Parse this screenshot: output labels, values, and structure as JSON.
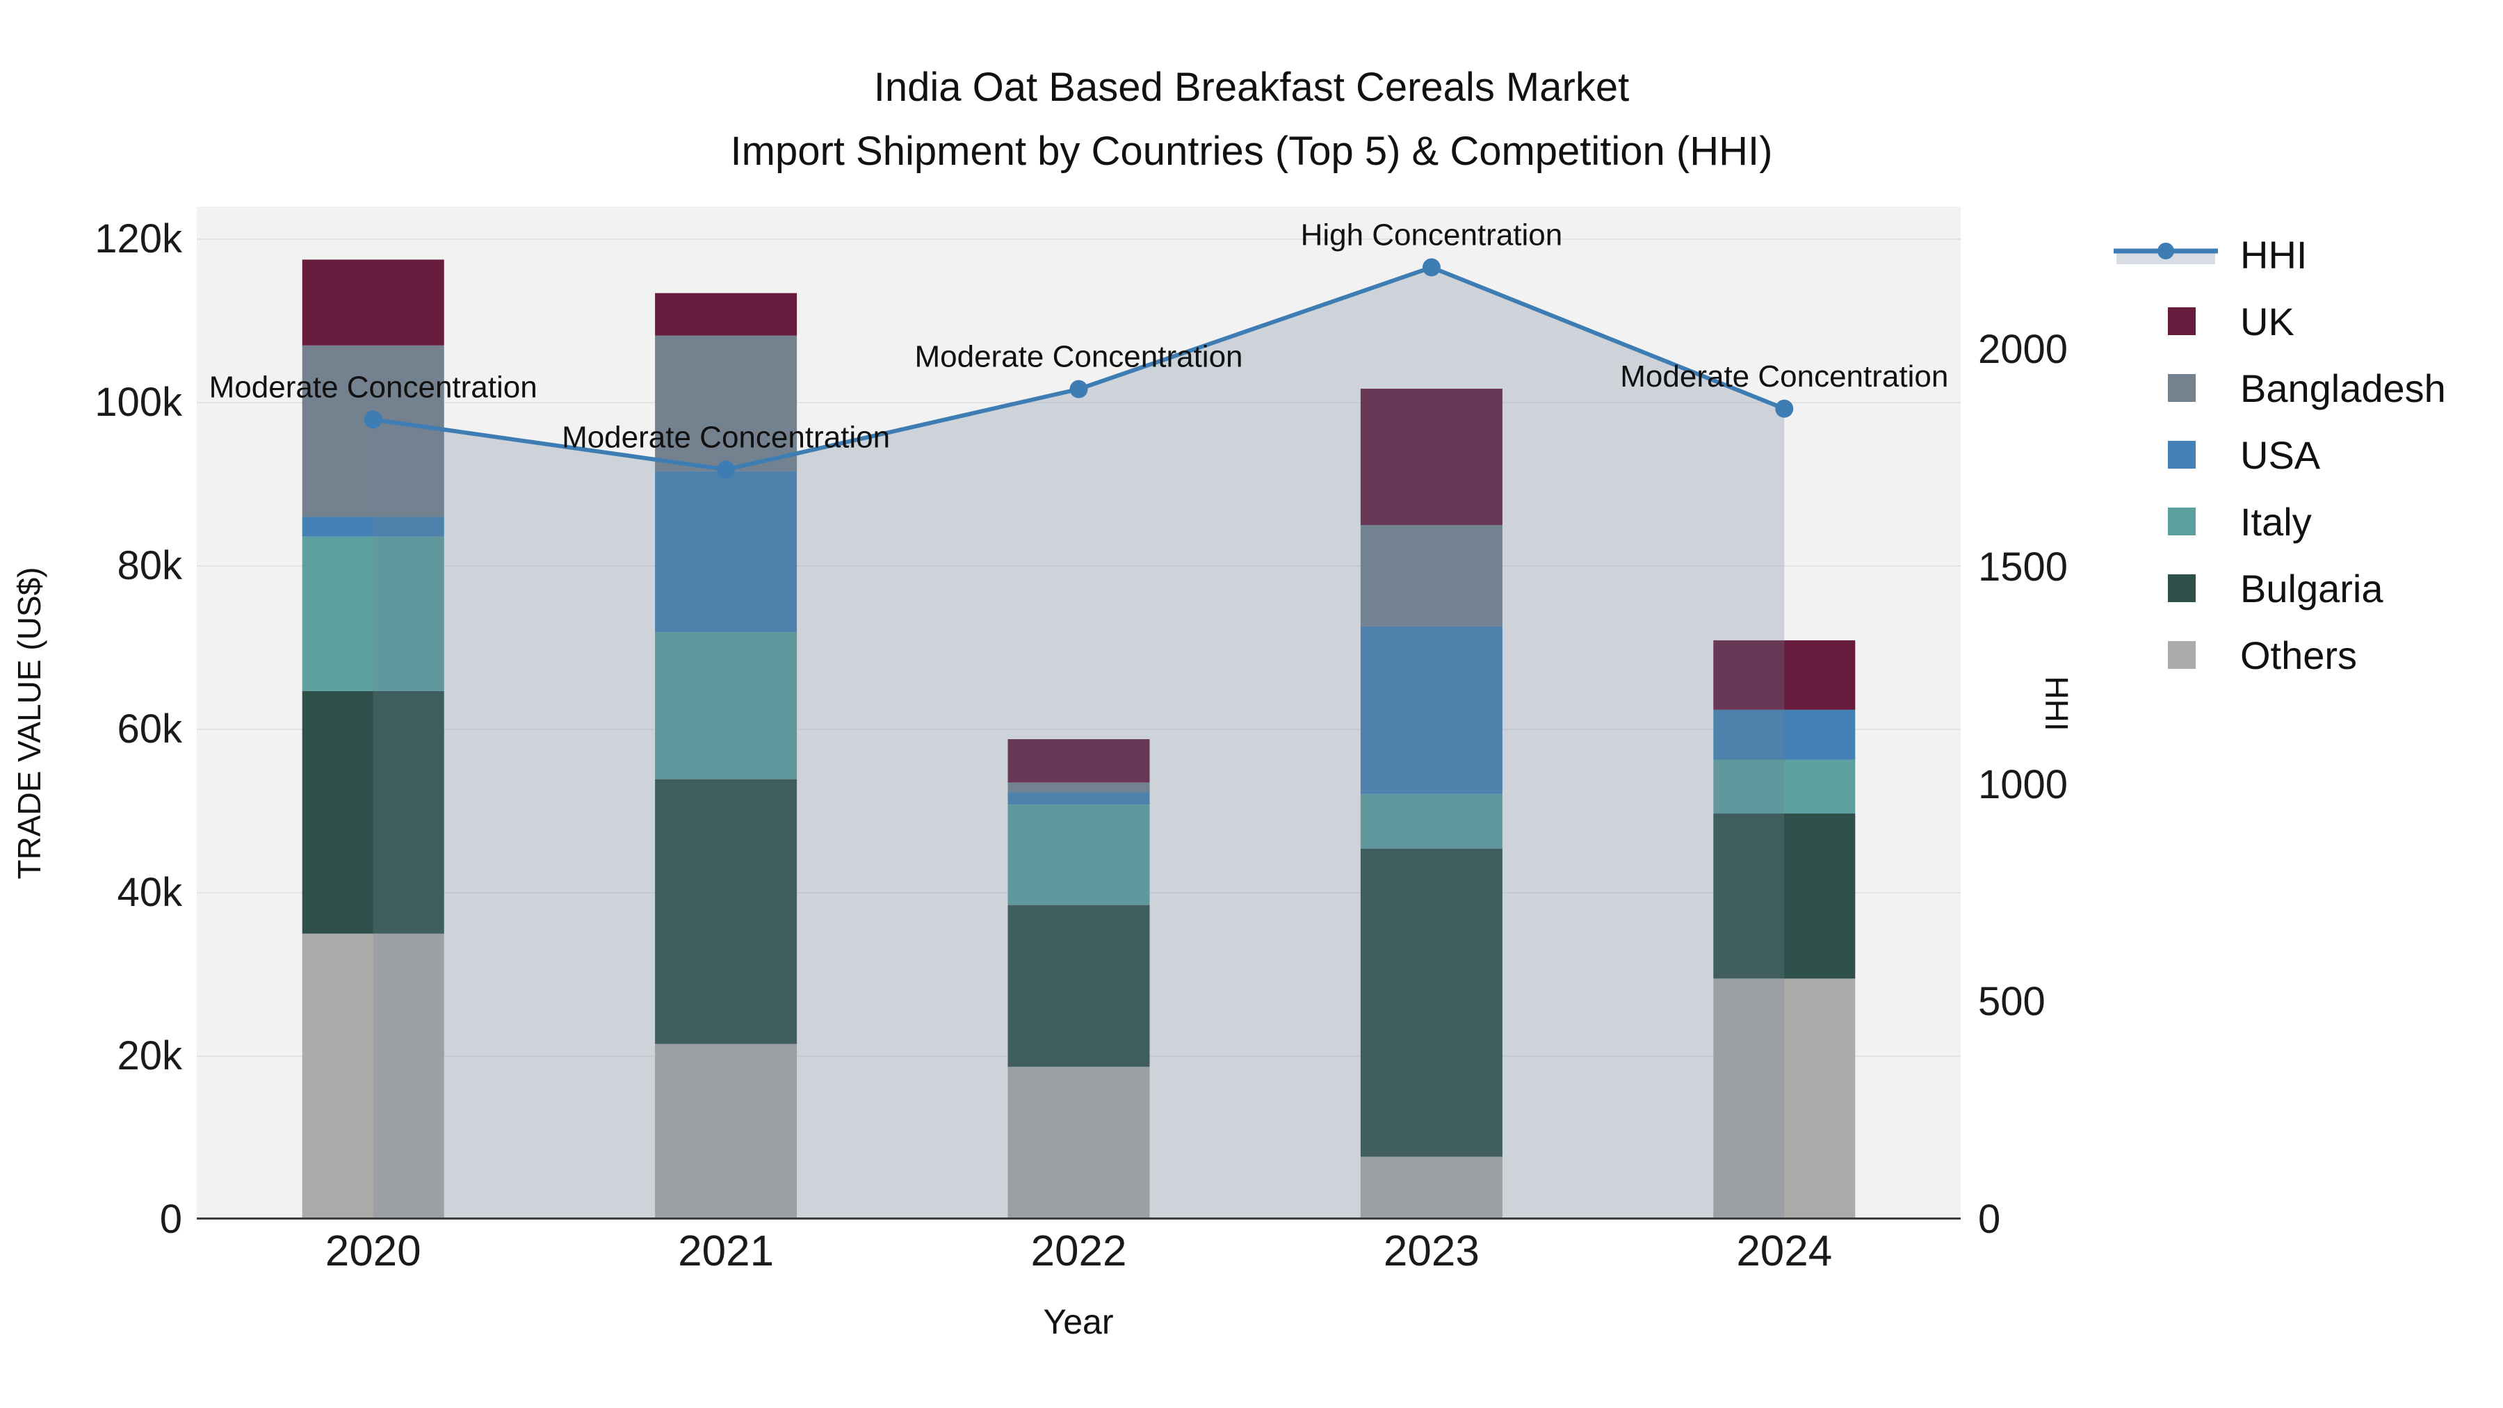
{
  "title": {
    "line1": "India Oat Based Breakfast Cereals Market",
    "line2": "Import Shipment by Countries (Top 5) & Competition (HHI)"
  },
  "chart_data": {
    "type": "bar",
    "stacked": true,
    "categories": [
      "2020",
      "2021",
      "2022",
      "2023",
      "2024"
    ],
    "series": [
      {
        "name": "Others",
        "color": "#ABABA9",
        "values": [
          35000,
          21500,
          18700,
          7700,
          29500
        ]
      },
      {
        "name": "Bulgaria",
        "color": "#2F4F4A",
        "values": [
          29700,
          32400,
          19800,
          37700,
          20200
        ]
      },
      {
        "name": "Italy",
        "color": "#5CA0A0",
        "values": [
          18900,
          18000,
          12300,
          6700,
          6600
        ]
      },
      {
        "name": "USA",
        "color": "#4380B6",
        "values": [
          2400,
          19700,
          1500,
          20500,
          6100
        ]
      },
      {
        "name": "Bangladesh",
        "color": "#74828F",
        "values": [
          21000,
          16600,
          1200,
          12400,
          0
        ]
      },
      {
        "name": "UK",
        "color": "#671B3D",
        "values": [
          10500,
          5200,
          5300,
          16700,
          8500
        ]
      }
    ],
    "line_series": {
      "name": "HHI",
      "axis": "y2",
      "color": "#3E7DB3",
      "area_fill": "rgba(110,132,152,0.28)",
      "values": [
        1840,
        1725,
        1910,
        2190,
        1865
      ]
    },
    "annotations": [
      {
        "x": "2020",
        "text": "Moderate Concentration"
      },
      {
        "x": "2021",
        "text": "Moderate Concentration"
      },
      {
        "x": "2022",
        "text": "Moderate Concentration"
      },
      {
        "x": "2023",
        "text": "High Concentration"
      },
      {
        "x": "2024",
        "text": "Moderate Concentration"
      }
    ],
    "xlabel": "Year",
    "ylabel": "TRADE VALUE (US$)",
    "y2label": "HHI",
    "ylim": [
      0,
      124000
    ],
    "y2lim": [
      0,
      2330
    ],
    "yticks": [
      {
        "v": 0,
        "label": "0"
      },
      {
        "v": 20000,
        "label": "20k"
      },
      {
        "v": 40000,
        "label": "40k"
      },
      {
        "v": 60000,
        "label": "60k"
      },
      {
        "v": 80000,
        "label": "80k"
      },
      {
        "v": 100000,
        "label": "100k"
      },
      {
        "v": 120000,
        "label": "120k"
      }
    ],
    "y2ticks": [
      {
        "v": 0,
        "label": "0"
      },
      {
        "v": 500,
        "label": "500"
      },
      {
        "v": 1000,
        "label": "1000"
      },
      {
        "v": 1500,
        "label": "1500"
      },
      {
        "v": 2000,
        "label": "2000"
      }
    ],
    "legend_order": [
      "HHI",
      "UK",
      "Bangladesh",
      "USA",
      "Italy",
      "Bulgaria",
      "Others"
    ],
    "grid": true,
    "legend_position": "right",
    "plot_bg": "#F2F2F2",
    "grid_color": "#E3E3E3",
    "axis_line_color": "#3B3B3B"
  }
}
